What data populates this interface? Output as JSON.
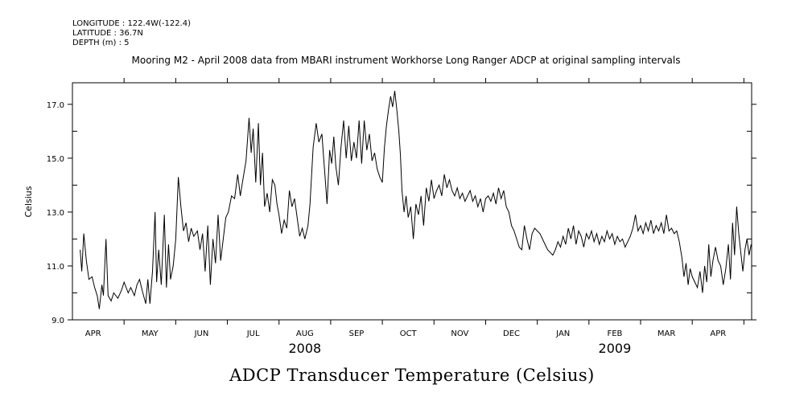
{
  "header": {
    "longitude": "LONGITUDE : 122.4W(-122.4)",
    "latitude": "LATITUDE : 36.7N",
    "depth": "DEPTH (m) : 5"
  },
  "chart_data": {
    "type": "line",
    "title": "ADCP Transducer Temperature (Celsius)",
    "subtitle": "Mooring M2 - April 2008 data from MBARI instrument Workhorse Long Ranger ADCP at original sampling intervals",
    "ylabel": "Celsius",
    "xlabel": "",
    "ylim": [
      9.0,
      17.8
    ],
    "xlim": [
      0,
      13.15
    ],
    "y_ticks": [
      9.0,
      11.0,
      13.0,
      15.0,
      17.0
    ],
    "y_tick_labels": [
      "9.0",
      "11.0",
      "13.0",
      "15.0",
      "17.0"
    ],
    "y_minor_ticks": [
      10.0,
      12.0,
      14.0,
      16.0
    ],
    "month_boundaries": [
      0,
      1,
      2,
      3,
      4,
      5,
      6,
      7,
      8,
      9,
      10,
      11,
      12,
      13
    ],
    "month_labels": [
      {
        "label": "APR",
        "x": 0.4
      },
      {
        "label": "MAY",
        "x": 1.5
      },
      {
        "label": "JUN",
        "x": 2.5
      },
      {
        "label": "JUL",
        "x": 3.5
      },
      {
        "label": "AUG",
        "x": 4.5
      },
      {
        "label": "SEP",
        "x": 5.5
      },
      {
        "label": "OCT",
        "x": 6.5
      },
      {
        "label": "NOV",
        "x": 7.5
      },
      {
        "label": "DEC",
        "x": 8.5
      },
      {
        "label": "JAN",
        "x": 9.5
      },
      {
        "label": "FEB",
        "x": 10.5
      },
      {
        "label": "MAR",
        "x": 11.5
      },
      {
        "label": "APR",
        "x": 12.5
      }
    ],
    "year_labels": [
      {
        "label": "2008",
        "x": 4.5
      },
      {
        "label": "2009",
        "x": 10.5
      }
    ],
    "series": [
      {
        "name": "ADCP Transducer Temperature",
        "x_units": "months since 2008-04-01",
        "points": [
          [
            0.15,
            11.6
          ],
          [
            0.18,
            10.8
          ],
          [
            0.22,
            12.2
          ],
          [
            0.27,
            11.2
          ],
          [
            0.32,
            10.5
          ],
          [
            0.38,
            10.6
          ],
          [
            0.43,
            10.2
          ],
          [
            0.48,
            9.9
          ],
          [
            0.52,
            9.4
          ],
          [
            0.57,
            10.3
          ],
          [
            0.6,
            9.9
          ],
          [
            0.65,
            12.0
          ],
          [
            0.69,
            9.9
          ],
          [
            0.75,
            9.7
          ],
          [
            0.8,
            10.0
          ],
          [
            0.88,
            9.8
          ],
          [
            0.95,
            10.1
          ],
          [
            1.0,
            10.4
          ],
          [
            1.08,
            10.0
          ],
          [
            1.13,
            10.2
          ],
          [
            1.2,
            9.9
          ],
          [
            1.25,
            10.3
          ],
          [
            1.3,
            10.5
          ],
          [
            1.35,
            10.1
          ],
          [
            1.42,
            9.6
          ],
          [
            1.46,
            10.5
          ],
          [
            1.5,
            9.6
          ],
          [
            1.55,
            10.8
          ],
          [
            1.6,
            13.0
          ],
          [
            1.63,
            10.4
          ],
          [
            1.67,
            11.6
          ],
          [
            1.72,
            10.3
          ],
          [
            1.78,
            12.9
          ],
          [
            1.82,
            10.2
          ],
          [
            1.86,
            11.8
          ],
          [
            1.9,
            10.5
          ],
          [
            1.95,
            11.0
          ],
          [
            2.0,
            12.0
          ],
          [
            2.05,
            14.3
          ],
          [
            2.1,
            13.2
          ],
          [
            2.15,
            12.3
          ],
          [
            2.2,
            12.6
          ],
          [
            2.25,
            11.9
          ],
          [
            2.3,
            12.4
          ],
          [
            2.35,
            12.1
          ],
          [
            2.42,
            12.3
          ],
          [
            2.47,
            11.6
          ],
          [
            2.52,
            12.2
          ],
          [
            2.57,
            10.8
          ],
          [
            2.62,
            12.5
          ],
          [
            2.67,
            10.3
          ],
          [
            2.72,
            12.0
          ],
          [
            2.77,
            11.1
          ],
          [
            2.82,
            12.9
          ],
          [
            2.87,
            11.2
          ],
          [
            2.92,
            12.0
          ],
          [
            2.97,
            12.8
          ],
          [
            3.02,
            13.0
          ],
          [
            3.08,
            13.6
          ],
          [
            3.14,
            13.5
          ],
          [
            3.2,
            14.4
          ],
          [
            3.25,
            13.6
          ],
          [
            3.3,
            14.2
          ],
          [
            3.36,
            14.9
          ],
          [
            3.42,
            16.5
          ],
          [
            3.46,
            15.2
          ],
          [
            3.5,
            16.1
          ],
          [
            3.55,
            14.1
          ],
          [
            3.6,
            16.3
          ],
          [
            3.64,
            14.0
          ],
          [
            3.68,
            15.2
          ],
          [
            3.72,
            13.2
          ],
          [
            3.77,
            13.7
          ],
          [
            3.82,
            13.0
          ],
          [
            3.87,
            14.2
          ],
          [
            3.92,
            14.0
          ],
          [
            3.96,
            13.3
          ],
          [
            4.0,
            12.9
          ],
          [
            4.05,
            12.2
          ],
          [
            4.1,
            12.7
          ],
          [
            4.15,
            12.4
          ],
          [
            4.2,
            13.8
          ],
          [
            4.25,
            13.2
          ],
          [
            4.3,
            13.5
          ],
          [
            4.35,
            12.8
          ],
          [
            4.4,
            12.1
          ],
          [
            4.45,
            12.4
          ],
          [
            4.5,
            12.0
          ],
          [
            4.56,
            12.5
          ],
          [
            4.6,
            13.3
          ],
          [
            4.66,
            15.4
          ],
          [
            4.72,
            16.3
          ],
          [
            4.77,
            15.6
          ],
          [
            4.83,
            15.9
          ],
          [
            4.88,
            14.6
          ],
          [
            4.93,
            13.3
          ],
          [
            4.98,
            15.3
          ],
          [
            5.02,
            14.8
          ],
          [
            5.06,
            15.8
          ],
          [
            5.1,
            14.7
          ],
          [
            5.15,
            14.0
          ],
          [
            5.2,
            15.4
          ],
          [
            5.25,
            16.4
          ],
          [
            5.3,
            15.0
          ],
          [
            5.35,
            16.2
          ],
          [
            5.4,
            14.9
          ],
          [
            5.45,
            15.6
          ],
          [
            5.5,
            15.0
          ],
          [
            5.55,
            16.4
          ],
          [
            5.6,
            14.8
          ],
          [
            5.65,
            16.4
          ],
          [
            5.7,
            15.3
          ],
          [
            5.75,
            15.9
          ],
          [
            5.8,
            14.9
          ],
          [
            5.85,
            15.2
          ],
          [
            5.9,
            14.6
          ],
          [
            5.95,
            14.3
          ],
          [
            6.0,
            14.1
          ],
          [
            6.04,
            15.4
          ],
          [
            6.08,
            16.2
          ],
          [
            6.12,
            16.8
          ],
          [
            6.16,
            17.3
          ],
          [
            6.2,
            16.9
          ],
          [
            6.24,
            17.5
          ],
          [
            6.28,
            16.8
          ],
          [
            6.32,
            16.0
          ],
          [
            6.35,
            15.1
          ],
          [
            6.38,
            13.8
          ],
          [
            6.42,
            13.0
          ],
          [
            6.46,
            13.6
          ],
          [
            6.5,
            12.8
          ],
          [
            6.55,
            13.2
          ],
          [
            6.6,
            12.0
          ],
          [
            6.65,
            13.3
          ],
          [
            6.7,
            12.9
          ],
          [
            6.75,
            13.6
          ],
          [
            6.8,
            12.5
          ],
          [
            6.85,
            13.9
          ],
          [
            6.9,
            13.4
          ],
          [
            6.95,
            14.2
          ],
          [
            7.0,
            13.5
          ],
          [
            7.05,
            13.8
          ],
          [
            7.1,
            14.0
          ],
          [
            7.15,
            13.6
          ],
          [
            7.2,
            14.4
          ],
          [
            7.25,
            13.9
          ],
          [
            7.3,
            14.2
          ],
          [
            7.35,
            13.8
          ],
          [
            7.4,
            13.6
          ],
          [
            7.45,
            13.9
          ],
          [
            7.5,
            13.5
          ],
          [
            7.55,
            13.7
          ],
          [
            7.6,
            13.4
          ],
          [
            7.65,
            13.6
          ],
          [
            7.7,
            13.8
          ],
          [
            7.75,
            13.4
          ],
          [
            7.8,
            13.6
          ],
          [
            7.85,
            13.2
          ],
          [
            7.9,
            13.5
          ],
          [
            7.95,
            13.0
          ],
          [
            8.0,
            13.5
          ],
          [
            8.05,
            13.6
          ],
          [
            8.1,
            13.4
          ],
          [
            8.15,
            13.7
          ],
          [
            8.2,
            13.3
          ],
          [
            8.25,
            13.9
          ],
          [
            8.3,
            13.5
          ],
          [
            8.35,
            13.8
          ],
          [
            8.4,
            13.2
          ],
          [
            8.45,
            13.0
          ],
          [
            8.5,
            12.5
          ],
          [
            8.55,
            12.3
          ],
          [
            8.6,
            12.0
          ],
          [
            8.65,
            11.7
          ],
          [
            8.7,
            11.6
          ],
          [
            8.75,
            12.5
          ],
          [
            8.8,
            12.0
          ],
          [
            8.85,
            11.6
          ],
          [
            8.9,
            12.2
          ],
          [
            8.95,
            12.4
          ],
          [
            9.0,
            12.3
          ],
          [
            9.05,
            12.2
          ],
          [
            9.1,
            12.0
          ],
          [
            9.15,
            11.8
          ],
          [
            9.2,
            11.6
          ],
          [
            9.25,
            11.5
          ],
          [
            9.3,
            11.4
          ],
          [
            9.35,
            11.6
          ],
          [
            9.4,
            11.9
          ],
          [
            9.45,
            11.7
          ],
          [
            9.5,
            12.1
          ],
          [
            9.55,
            11.8
          ],
          [
            9.6,
            12.4
          ],
          [
            9.65,
            12.0
          ],
          [
            9.7,
            12.5
          ],
          [
            9.75,
            11.8
          ],
          [
            9.8,
            12.3
          ],
          [
            9.85,
            12.1
          ],
          [
            9.9,
            11.7
          ],
          [
            9.95,
            12.2
          ],
          [
            10.0,
            12.0
          ],
          [
            10.05,
            12.3
          ],
          [
            10.1,
            11.9
          ],
          [
            10.15,
            12.2
          ],
          [
            10.2,
            11.8
          ],
          [
            10.25,
            12.1
          ],
          [
            10.3,
            11.9
          ],
          [
            10.35,
            12.3
          ],
          [
            10.4,
            12.0
          ],
          [
            10.45,
            12.2
          ],
          [
            10.5,
            11.8
          ],
          [
            10.55,
            12.1
          ],
          [
            10.6,
            11.9
          ],
          [
            10.65,
            12.0
          ],
          [
            10.7,
            11.7
          ],
          [
            10.75,
            11.9
          ],
          [
            10.8,
            12.1
          ],
          [
            10.85,
            12.4
          ],
          [
            10.9,
            12.9
          ],
          [
            10.95,
            12.3
          ],
          [
            11.0,
            12.5
          ],
          [
            11.05,
            12.2
          ],
          [
            11.1,
            12.6
          ],
          [
            11.15,
            12.3
          ],
          [
            11.2,
            12.7
          ],
          [
            11.25,
            12.2
          ],
          [
            11.3,
            12.5
          ],
          [
            11.35,
            12.3
          ],
          [
            11.4,
            12.6
          ],
          [
            11.45,
            12.2
          ],
          [
            11.5,
            12.9
          ],
          [
            11.55,
            12.3
          ],
          [
            11.6,
            12.4
          ],
          [
            11.65,
            12.2
          ],
          [
            11.7,
            12.3
          ],
          [
            11.75,
            11.9
          ],
          [
            11.8,
            11.3
          ],
          [
            11.84,
            10.6
          ],
          [
            11.88,
            11.1
          ],
          [
            11.92,
            10.3
          ],
          [
            11.96,
            10.9
          ],
          [
            12.0,
            10.6
          ],
          [
            12.05,
            10.4
          ],
          [
            12.1,
            10.2
          ],
          [
            12.15,
            10.8
          ],
          [
            12.2,
            10.0
          ],
          [
            12.24,
            11.0
          ],
          [
            12.28,
            10.4
          ],
          [
            12.32,
            11.8
          ],
          [
            12.36,
            10.6
          ],
          [
            12.4,
            11.2
          ],
          [
            12.45,
            11.7
          ],
          [
            12.5,
            11.2
          ],
          [
            12.55,
            11.0
          ],
          [
            12.6,
            10.3
          ],
          [
            12.65,
            10.9
          ],
          [
            12.7,
            11.8
          ],
          [
            12.74,
            10.5
          ],
          [
            12.78,
            12.6
          ],
          [
            12.82,
            11.4
          ],
          [
            12.86,
            13.2
          ],
          [
            12.9,
            12.2
          ],
          [
            12.94,
            11.5
          ],
          [
            12.98,
            10.8
          ],
          [
            13.02,
            11.6
          ],
          [
            13.06,
            12.0
          ],
          [
            13.1,
            11.4
          ],
          [
            13.14,
            11.8
          ]
        ]
      }
    ]
  }
}
